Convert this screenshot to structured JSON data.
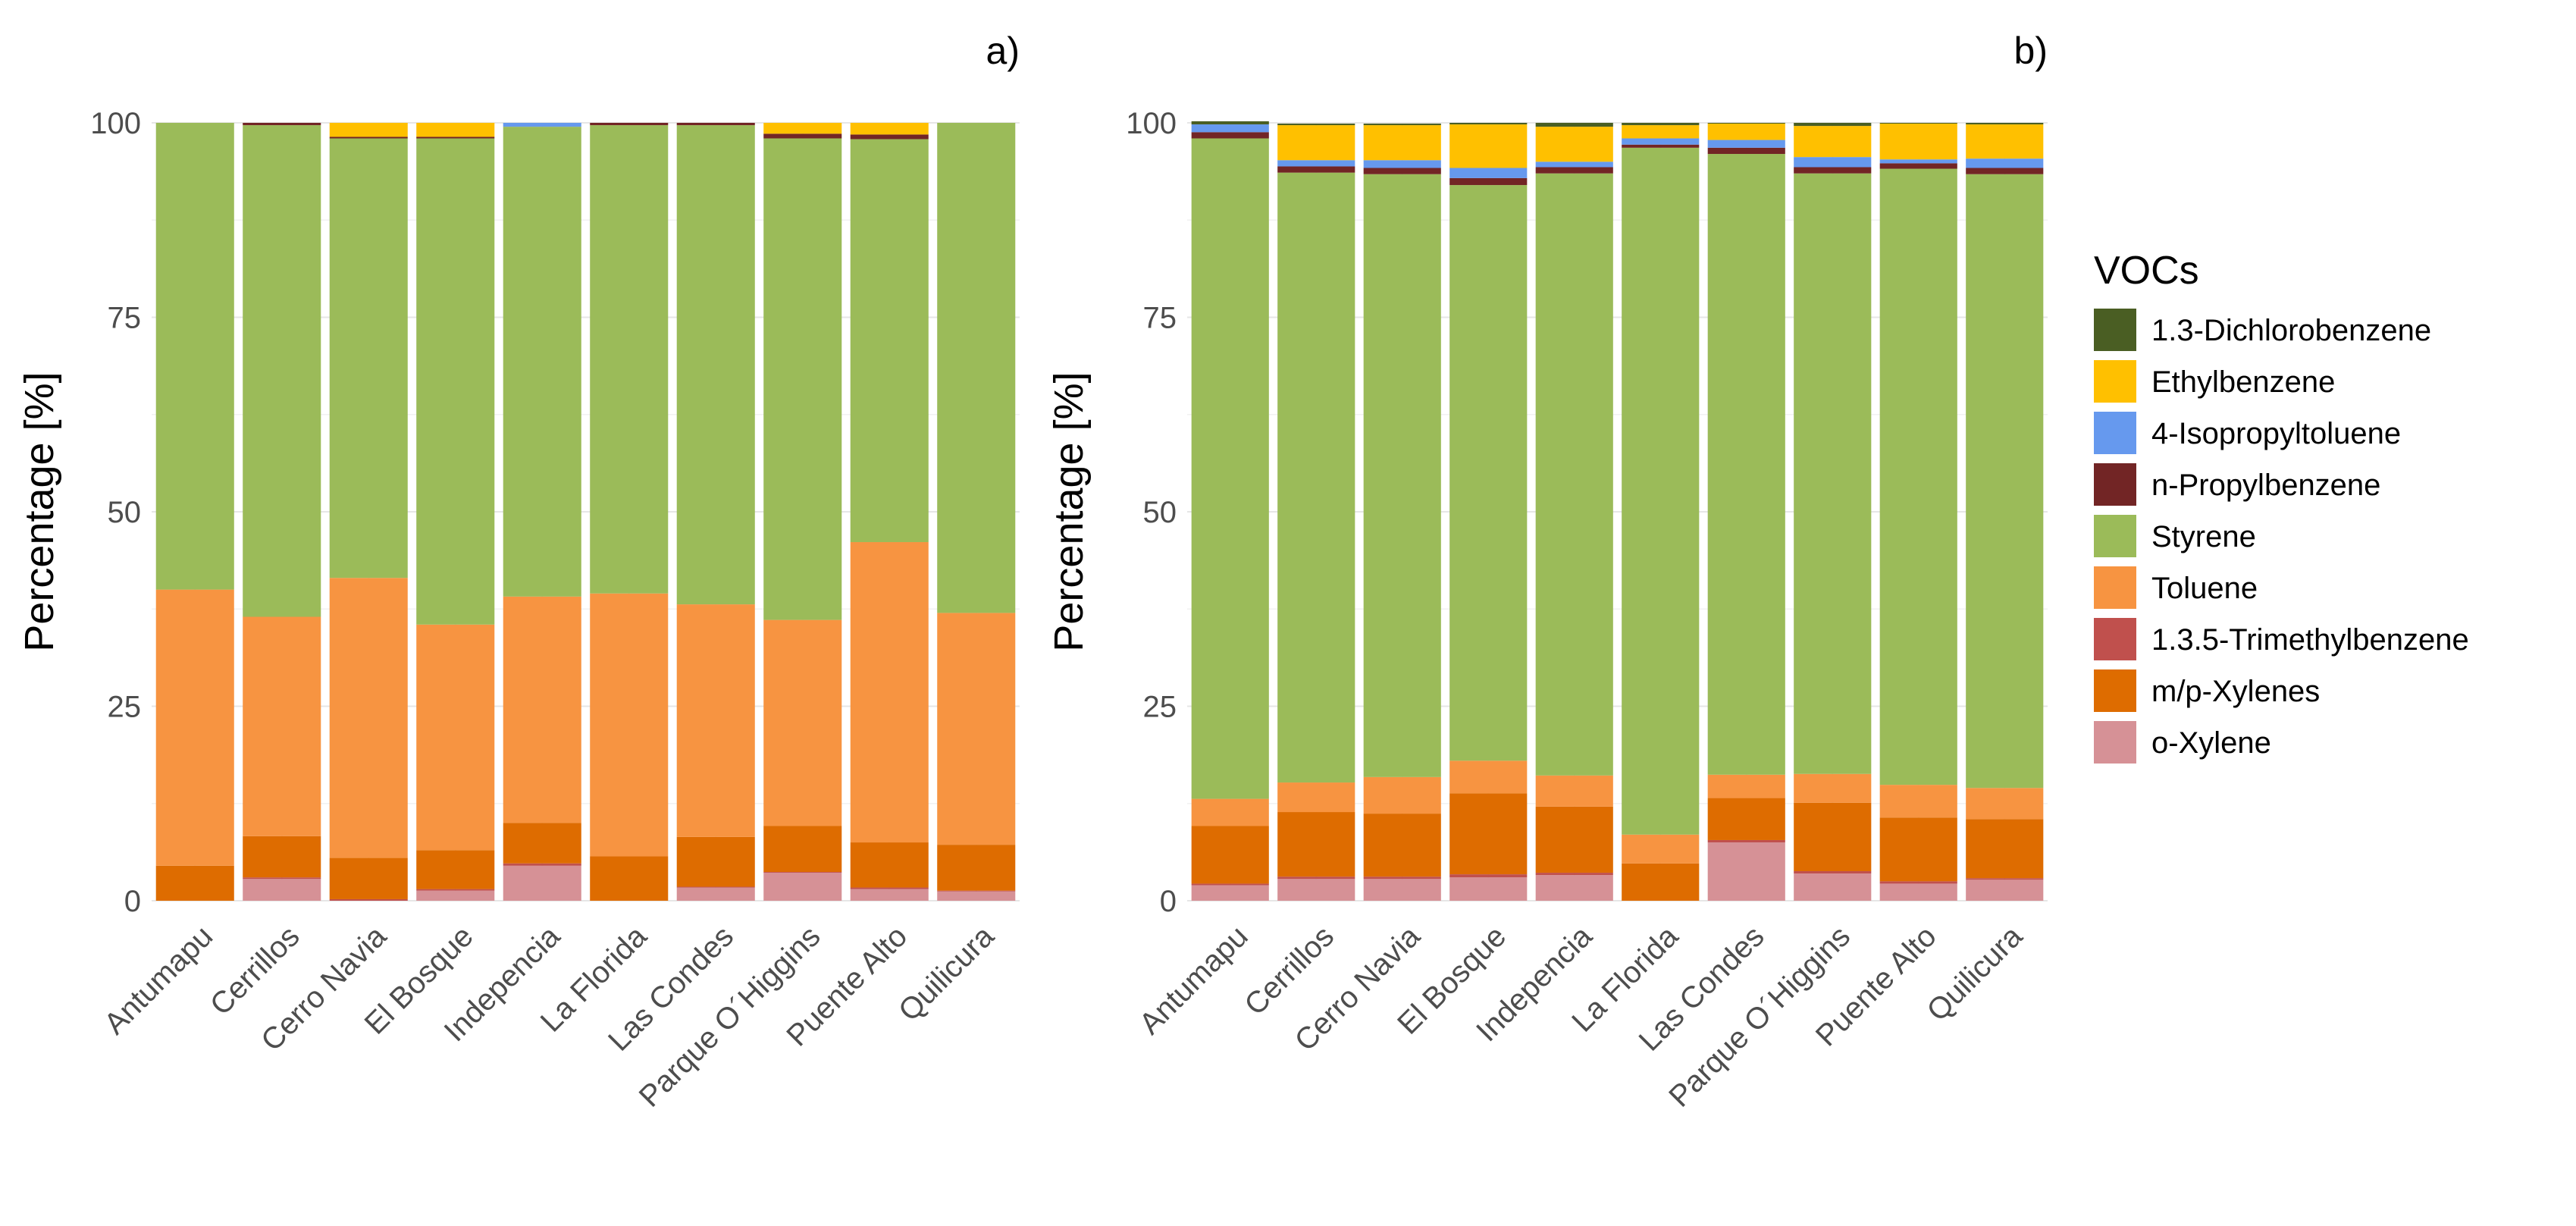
{
  "chart_data": {
    "type": "bar",
    "stacked": true,
    "legend": {
      "title": "VOCs",
      "position": "right",
      "items": [
        {
          "name": "1.3-Dichlorobenzene",
          "color": "#4A5E23"
        },
        {
          "name": "Ethylbenzene",
          "color": "#FFC000"
        },
        {
          "name": "4-Isopropyltoluene",
          "color": "#6699EE"
        },
        {
          "name": "n-Propylbenzene",
          "color": "#722525"
        },
        {
          "name": "Styrene",
          "color": "#9BBB59"
        },
        {
          "name": "Toluene",
          "color": "#F79441"
        },
        {
          "name": "1.3.5-Trimethylbenzene",
          "color": "#C0504D"
        },
        {
          "name": "m/p-Xylenes",
          "color": "#DE6C00"
        },
        {
          "name": "o-Xylene",
          "color": "#D69196"
        }
      ]
    },
    "stack_order_bottom_to_top": [
      "o-Xylene",
      "1.3.5-Trimethylbenzene",
      "m/p-Xylenes",
      "Toluene",
      "Styrene",
      "n-Propylbenzene",
      "4-Isopropyltoluene",
      "Ethylbenzene",
      "1.3-Dichlorobenzene"
    ],
    "categories": [
      "Antumapu",
      "Cerrillos",
      "Cerro Navia",
      "El Bosque",
      "Indepencia",
      "La Florida",
      "Las Condes",
      "Parque O´Higgins",
      "Puente Alto",
      "Quilicura"
    ],
    "ylabel": "Percentage [%]",
    "xlabel": "",
    "ylim": [
      0,
      100
    ],
    "yticks": [
      "0",
      "25",
      "50",
      "75",
      "100"
    ],
    "grid": true,
    "panels": [
      {
        "label": "a)",
        "series": [
          {
            "name": "o-Xylene",
            "values": [
              0,
              2.8,
              0,
              1.3,
              4.5,
              0,
              1.7,
              3.6,
              1.5,
              1.2
            ]
          },
          {
            "name": "1.3.5-Trimethylbenzene",
            "values": [
              0,
              0.2,
              0.2,
              0.2,
              0.3,
              0,
              0.1,
              0.1,
              0.2,
              0.1
            ]
          },
          {
            "name": "m/p-Xylenes",
            "values": [
              4.5,
              5.3,
              5.3,
              5.0,
              5.2,
              5.7,
              6.4,
              5.9,
              5.8,
              5.9
            ]
          },
          {
            "name": "Toluene",
            "values": [
              35.5,
              28.2,
              36.0,
              29.0,
              29.1,
              33.8,
              29.9,
              26.5,
              38.6,
              29.8
            ]
          },
          {
            "name": "Styrene",
            "values": [
              60.0,
              63.2,
              56.5,
              62.5,
              60.4,
              60.2,
              61.6,
              61.9,
              51.8,
              63.0
            ]
          },
          {
            "name": "n-Propylbenzene",
            "values": [
              0,
              0.3,
              0.2,
              0.2,
              0,
              0.3,
              0.3,
              0.6,
              0.6,
              0
            ]
          },
          {
            "name": "4-Isopropyltoluene",
            "values": [
              0,
              0,
              0,
              0,
              0.5,
              0,
              0,
              0,
              0,
              0
            ]
          },
          {
            "name": "Ethylbenzene",
            "values": [
              0,
              0,
              1.8,
              1.8,
              0,
              0,
              0,
              1.4,
              1.5,
              0
            ]
          },
          {
            "name": "1.3-Dichlorobenzene",
            "values": [
              0,
              0,
              0,
              0,
              0,
              0,
              0,
              0,
              0,
              0
            ]
          }
        ]
      },
      {
        "label": "b)",
        "series": [
          {
            "name": "o-Xylene",
            "values": [
              2.0,
              2.8,
              2.8,
              3.0,
              3.3,
              0,
              7.5,
              3.5,
              2.2,
              2.7
            ]
          },
          {
            "name": "1.3.5-Trimethylbenzene",
            "values": [
              0.2,
              0.3,
              0.3,
              0.4,
              0.3,
              0,
              0.3,
              0.3,
              0.3,
              0.2
            ]
          },
          {
            "name": "m/p-Xylenes",
            "values": [
              7.4,
              8.3,
              8.1,
              10.4,
              8.5,
              4.8,
              5.4,
              8.8,
              8.2,
              7.6
            ]
          },
          {
            "name": "Toluene",
            "values": [
              3.5,
              3.8,
              4.7,
              4.2,
              4.0,
              3.7,
              3.0,
              3.7,
              4.2,
              4.0
            ]
          },
          {
            "name": "Styrene",
            "values": [
              84.9,
              78.4,
              77.5,
              74.0,
              77.4,
              88.3,
              79.8,
              77.2,
              79.2,
              78.9
            ]
          },
          {
            "name": "n-Propylbenzene",
            "values": [
              0.8,
              0.8,
              0.8,
              0.9,
              0.8,
              0.4,
              0.8,
              0.8,
              0.7,
              0.8
            ]
          },
          {
            "name": "4-Isopropyltoluene",
            "values": [
              1.0,
              0.8,
              1.0,
              1.3,
              0.7,
              0.8,
              1.0,
              1.3,
              0.5,
              1.2
            ]
          },
          {
            "name": "Ethylbenzene",
            "values": [
              0,
              4.5,
              4.5,
              5.6,
              4.5,
              1.7,
              2.1,
              4.0,
              4.6,
              4.4
            ]
          },
          {
            "name": "1.3-Dichlorobenzene",
            "values": [
              0.4,
              0.2,
              0.2,
              0.2,
              0.5,
              0.3,
              0.1,
              0.4,
              0.1,
              0.2
            ]
          }
        ]
      }
    ]
  }
}
